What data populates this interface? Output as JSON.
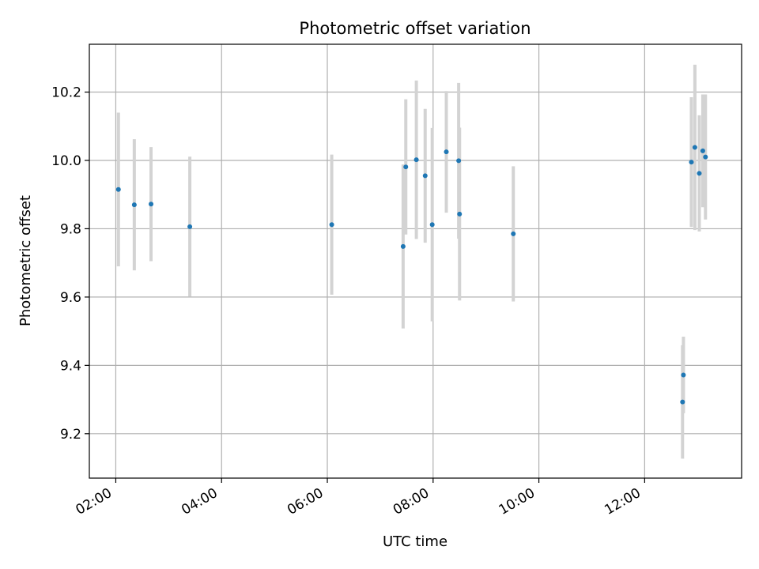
{
  "chart_data": {
    "type": "scatter",
    "title": "Photometric offset variation",
    "xlabel": "UTC time",
    "ylabel": "Photometric offset",
    "x_unit": "hours (UTC)",
    "xlim": [
      "01:30",
      "13:50"
    ],
    "ylim": [
      9.07,
      10.34
    ],
    "x_ticks": [
      {
        "value": "02:00",
        "label": "02:00"
      },
      {
        "value": "04:00",
        "label": "04:00"
      },
      {
        "value": "06:00",
        "label": "06:00"
      },
      {
        "value": "08:00",
        "label": "08:00"
      },
      {
        "value": "10:00",
        "label": "10:00"
      },
      {
        "value": "12:00",
        "label": "12:00"
      }
    ],
    "y_ticks": [
      {
        "value": 9.2,
        "label": "9.2"
      },
      {
        "value": 9.4,
        "label": "9.4"
      },
      {
        "value": 9.6,
        "label": "9.6"
      },
      {
        "value": 9.8,
        "label": "9.8"
      },
      {
        "value": 10.0,
        "label": "10.0"
      },
      {
        "value": 10.2,
        "label": "10.2"
      }
    ],
    "grid": true,
    "marker_color": "#1f77b4",
    "errorbar_color": "#d3d3d3",
    "points": [
      {
        "x": "02:03",
        "y": 9.915,
        "err": 0.225
      },
      {
        "x": "02:21",
        "y": 9.87,
        "err": 0.192
      },
      {
        "x": "02:40",
        "y": 9.872,
        "err": 0.167
      },
      {
        "x": "03:24",
        "y": 9.806,
        "err": 0.205
      },
      {
        "x": "06:05",
        "y": 9.812,
        "err": 0.205
      },
      {
        "x": "07:26",
        "y": 9.748,
        "err": 0.24
      },
      {
        "x": "07:29",
        "y": 9.981,
        "err": 0.198
      },
      {
        "x": "07:41",
        "y": 10.002,
        "err": 0.232
      },
      {
        "x": "07:51",
        "y": 9.955,
        "err": 0.196
      },
      {
        "x": "07:59",
        "y": 9.812,
        "err": 0.283
      },
      {
        "x": "08:15",
        "y": 10.025,
        "err": 0.178
      },
      {
        "x": "08:29",
        "y": 9.999,
        "err": 0.228
      },
      {
        "x": "08:30",
        "y": 9.843,
        "err": 0.253
      },
      {
        "x": "09:31",
        "y": 9.785,
        "err": 0.198
      },
      {
        "x": "12:43",
        "y": 9.293,
        "err": 0.166
      },
      {
        "x": "12:44",
        "y": 9.372,
        "err": 0.112
      },
      {
        "x": "12:53",
        "y": 9.995,
        "err": 0.19
      },
      {
        "x": "12:57",
        "y": 10.038,
        "err": 0.242
      },
      {
        "x": "13:02",
        "y": 9.962,
        "err": 0.17
      },
      {
        "x": "13:06",
        "y": 10.028,
        "err": 0.165
      },
      {
        "x": "13:09",
        "y": 10.01,
        "err": 0.183
      }
    ]
  }
}
